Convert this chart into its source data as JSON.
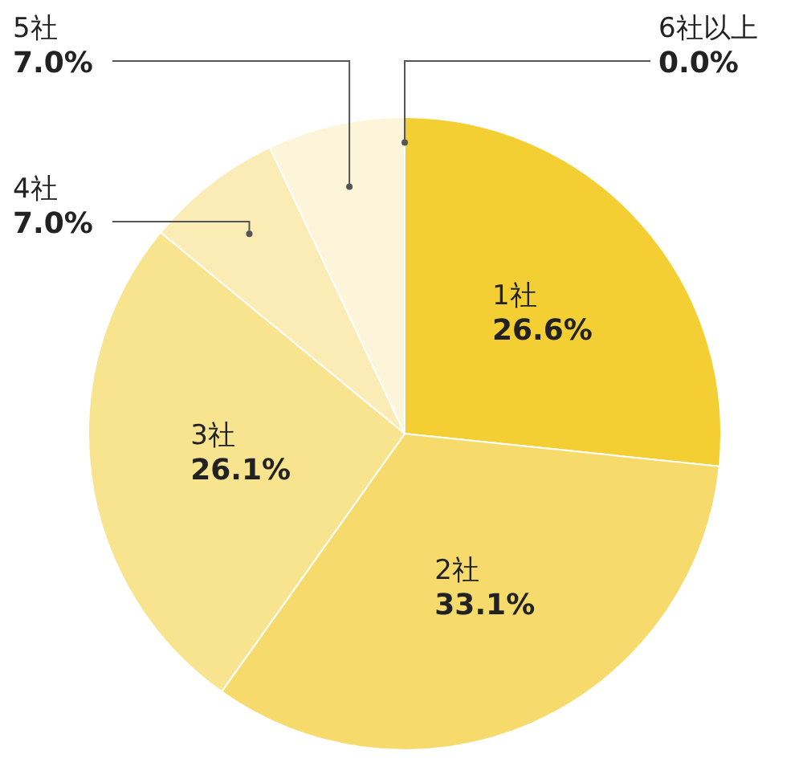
{
  "chart_data": {
    "type": "pie",
    "categories": [
      "1社",
      "2社",
      "3社",
      "4社",
      "5社",
      "6社以上"
    ],
    "values": [
      26.6,
      33.1,
      26.1,
      7.0,
      7.0,
      0.0
    ],
    "value_labels": [
      "26.6%",
      "33.1%",
      "26.1%",
      "7.0%",
      "7.0%",
      "0.0%"
    ],
    "colors": [
      "#f4cf33",
      "#f6db6c",
      "#f8e38e",
      "#fbecb6",
      "#fdf5d9",
      "#fefae8"
    ]
  }
}
